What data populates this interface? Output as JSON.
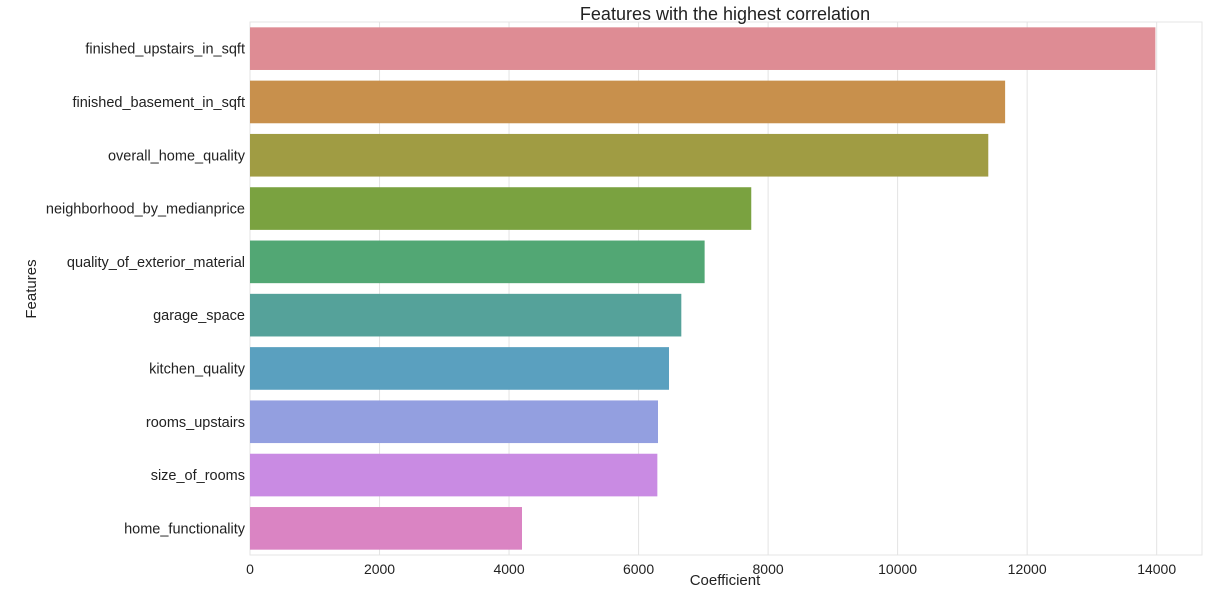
{
  "chart_data": {
    "type": "bar",
    "orientation": "horizontal",
    "title": "Features with the highest correlation",
    "xlabel": "Coefficient",
    "ylabel": "Features",
    "xlim": [
      0,
      14700
    ],
    "xticks": [
      0,
      2000,
      4000,
      6000,
      8000,
      10000,
      12000,
      14000
    ],
    "grid": true,
    "categories": [
      "finished_upstairs_in_sqft",
      "finished_basement_in_sqft",
      "overall_home_quality",
      "neighborhood_by_medianprice",
      "quality_of_exterior_material",
      "garage_space",
      "kitchen_quality",
      "rooms_upstairs",
      "size_of_rooms",
      "home_functionality"
    ],
    "values": [
      13980,
      11660,
      11400,
      7740,
      7020,
      6660,
      6470,
      6300,
      6290,
      4200
    ],
    "colors": [
      "#de8c94",
      "#c8904c",
      "#a09c43",
      "#7aa240",
      "#52a774",
      "#55a29a",
      "#5aa0bf",
      "#939fe0",
      "#c98be3",
      "#da84c3"
    ]
  }
}
